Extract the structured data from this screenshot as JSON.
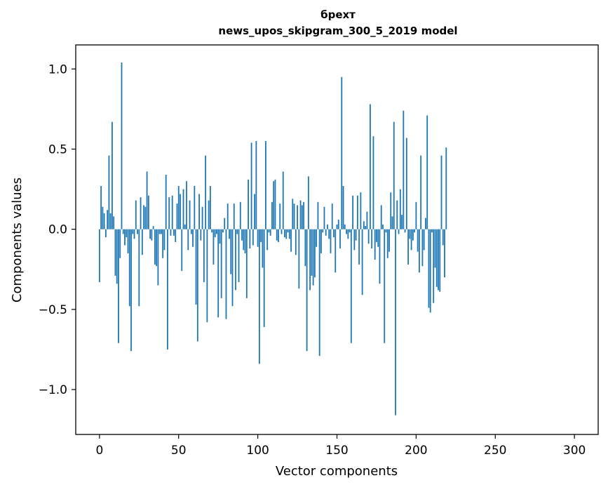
{
  "chart_data": {
    "type": "bar",
    "title": "брехт",
    "subtitle": "news_upos_skipgram_300_5_2019 model",
    "xlabel": "Vector components",
    "ylabel": "Components values",
    "xlim": [
      -15,
      315
    ],
    "ylim": [
      -1.28,
      1.15
    ],
    "xticks": [
      0,
      50,
      100,
      150,
      200,
      250,
      300
    ],
    "xtick_labels": [
      "0",
      "50",
      "100",
      "150",
      "200",
      "250",
      "300"
    ],
    "yticks": [
      -1.0,
      -0.5,
      0.0,
      0.5,
      1.0
    ],
    "ytick_labels": [
      "−1.0",
      "−0.5",
      "0.0",
      "0.5",
      "1.0"
    ],
    "grid": false,
    "bar_color": "#1f77b4",
    "series": [
      {
        "x_start": 0,
        "values": [
          -0.33,
          0.27,
          0.14,
          0.1,
          -0.05,
          0.12,
          0.46,
          0.1,
          0.67,
          0.08,
          -0.29,
          -0.34,
          -0.71,
          -0.18,
          1.04,
          -0.03,
          -0.1,
          -0.05,
          -0.15,
          -0.48,
          -0.76,
          -0.03,
          -0.06,
          0.18,
          -0.03,
          -0.48,
          0.2,
          -0.16,
          0.15,
          0.14,
          0.36,
          0.21,
          -0.06,
          -0.07,
          0.02,
          -0.22,
          -0.23,
          -0.35,
          -0.03,
          -0.03,
          -0.18,
          -0.13,
          0.34,
          -0.75,
          0.2,
          -0.04,
          0.21,
          -0.04,
          -0.08,
          0.16,
          0.27,
          0.22,
          -0.26,
          0.25,
          0.03,
          0.3,
          -0.13,
          0.18,
          -0.03,
          -0.11,
          0.27,
          -0.47,
          -0.7,
          0.22,
          -0.07,
          0.14,
          -0.33,
          0.46,
          -0.58,
          0.18,
          0.27,
          -0.02,
          -0.22,
          -0.05,
          -0.03,
          -0.55,
          -0.09,
          -0.43,
          -0.02,
          0.07,
          -0.56,
          0.16,
          -0.06,
          -0.28,
          -0.48,
          0.16,
          -0.38,
          -0.03,
          -0.33,
          0.17,
          -0.07,
          -0.13,
          -0.15,
          -0.43,
          0.31,
          -0.12,
          0.54,
          -0.1,
          0.22,
          0.55,
          -0.11,
          -0.84,
          -0.08,
          -0.24,
          -0.61,
          0.55,
          -0.13,
          -0.02,
          -0.04,
          0.17,
          0.3,
          0.31,
          -0.07,
          -0.08,
          0.16,
          -0.03,
          0.36,
          -0.05,
          -0.06,
          -0.02,
          -0.06,
          -0.14,
          0.19,
          0.16,
          -0.16,
          0.15,
          -0.37,
          0.18,
          0.15,
          0.17,
          -0.23,
          -0.76,
          0.33,
          -0.38,
          -0.29,
          -0.35,
          -0.3,
          -0.11,
          0.17,
          -0.79,
          -0.15,
          -0.02,
          0.14,
          -0.04,
          0.03,
          -0.06,
          -0.15,
          0.16,
          -0.05,
          -0.27,
          0.03,
          0.06,
          -0.12,
          0.95,
          0.27,
          0.03,
          -0.03,
          -0.06,
          -0.02,
          -0.71,
          0.21,
          -0.13,
          -0.07,
          0.21,
          -0.22,
          0.23,
          -0.41,
          0.05,
          0.02,
          0.11,
          -0.09,
          0.78,
          -0.12,
          0.58,
          -0.19,
          -0.08,
          -0.11,
          -0.34,
          0.15,
          0.03,
          -0.71,
          -0.02,
          -0.18,
          -0.14,
          0.23,
          0.08,
          0.67,
          -1.16,
          0.18,
          -0.03,
          0.25,
          0.09,
          0.74,
          -0.02,
          0.57,
          -0.22,
          -0.06,
          -0.13,
          -0.07,
          -0.02,
          0.17,
          -0.14,
          -0.27,
          0.46,
          -0.23,
          -0.13,
          0.07,
          0.71,
          -0.49,
          -0.52,
          -0.02,
          -0.46,
          -0.24,
          -0.36,
          -0.38,
          -0.39,
          0.46,
          -0.1,
          -0.3,
          0.51
        ]
      }
    ]
  }
}
